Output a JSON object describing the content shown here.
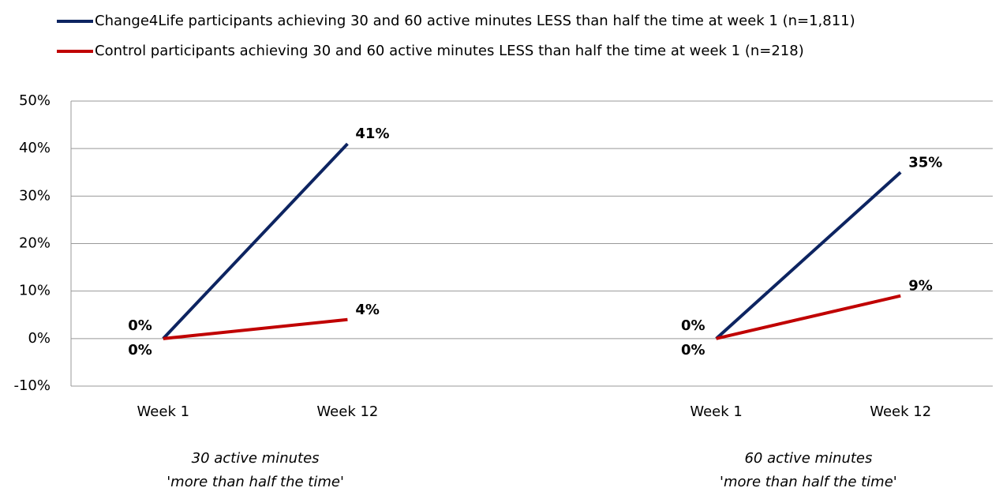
{
  "chart_data": {
    "type": "line",
    "categories": [
      "Week 1",
      "Week 12",
      null,
      "Week 1",
      "Week 12"
    ],
    "series": [
      {
        "name": "Change4Life participants achieving 30 and 60 active minutes LESS than half the time at week 1 (n=1,811)",
        "color": "#0d2461",
        "values": [
          0,
          41,
          null,
          0,
          35
        ],
        "value_labels": [
          "0%",
          "41%",
          null,
          "0%",
          "35%"
        ]
      },
      {
        "name": "Control participants achieving 30 and 60 active minutes LESS than half the time at week 1 (n=218)",
        "color": "#c00000",
        "values": [
          0,
          4,
          null,
          0,
          9
        ],
        "value_labels": [
          "0%",
          "4%",
          null,
          "0%",
          "9%"
        ]
      }
    ],
    "ylim": [
      -10,
      50
    ],
    "yticks": [
      {
        "value": -10,
        "label": "-10%"
      },
      {
        "value": 0,
        "label": "0%"
      },
      {
        "value": 10,
        "label": "10%"
      },
      {
        "value": 20,
        "label": "20%"
      },
      {
        "value": 30,
        "label": "30%"
      },
      {
        "value": 40,
        "label": "40%"
      },
      {
        "value": 50,
        "label": "50%"
      }
    ],
    "grid": true,
    "group_labels": [
      [
        "30 active minutes",
        "'more than half the time'"
      ],
      [
        "60 active minutes",
        "'more than half the time'"
      ]
    ]
  }
}
